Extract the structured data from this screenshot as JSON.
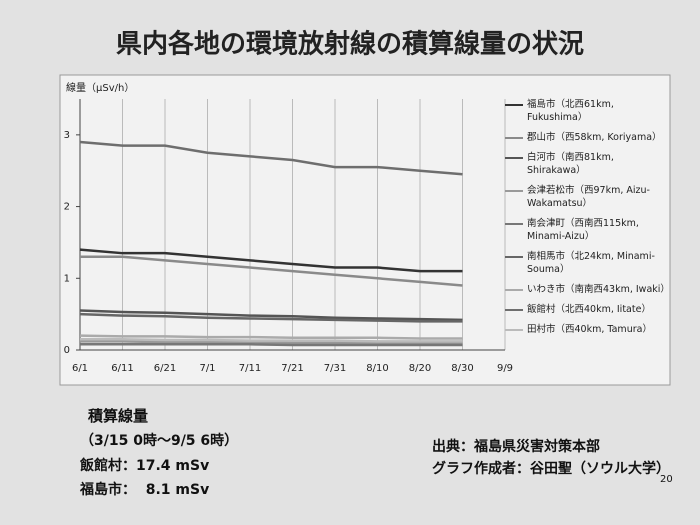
{
  "chart_data": {
    "type": "line",
    "title": "県内各地の環境放射線の積算線量の状況",
    "y_label": "線量（μSv/h）",
    "categories": [
      "6/1",
      "6/11",
      "6/21",
      "7/1",
      "7/11",
      "7/21",
      "7/31",
      "8/10",
      "8/20",
      "8/30",
      "9/9"
    ],
    "ylim": [
      0,
      3.5
    ],
    "yticks": [
      0,
      1,
      2,
      3
    ],
    "grid": true,
    "legend": "right",
    "series": [
      {
        "name": "福島市（北西61km, Fukushima）",
        "color": "#333333",
        "values": [
          1.4,
          1.35,
          1.35,
          1.3,
          1.25,
          1.2,
          1.15,
          1.15,
          1.1,
          1.1,
          null
        ]
      },
      {
        "name": "郡山市（西58km, Koriyama）",
        "color": "#8a8a8a",
        "values": [
          1.3,
          1.3,
          1.25,
          1.2,
          1.15,
          1.1,
          1.05,
          1.0,
          0.95,
          0.9,
          null
        ]
      },
      {
        "name": "白河市（南西81km, Shirakawa）",
        "color": "#555555",
        "values": [
          0.55,
          0.53,
          0.52,
          0.5,
          0.48,
          0.47,
          0.45,
          0.44,
          0.43,
          0.42,
          null
        ]
      },
      {
        "name": "会津若松市（西97km, Aizu-Wakamatsu）",
        "color": "#999999",
        "values": [
          0.12,
          0.12,
          0.11,
          0.11,
          0.11,
          0.1,
          0.1,
          0.1,
          0.1,
          0.1,
          null
        ]
      },
      {
        "name": "南会津町（西南西115km, Minami-Aizu）",
        "color": "#777777",
        "values": [
          0.08,
          0.08,
          0.08,
          0.08,
          0.08,
          0.07,
          0.07,
          0.07,
          0.07,
          0.07,
          null
        ]
      },
      {
        "name": "南相馬市（北24km, Minami-Souma）",
        "color": "#666666",
        "values": [
          0.5,
          0.48,
          0.47,
          0.45,
          0.44,
          0.43,
          0.42,
          0.41,
          0.4,
          0.4,
          null
        ]
      },
      {
        "name": "いわき市（南南西43km, Iwaki）",
        "color": "#aaaaaa",
        "values": [
          0.2,
          0.19,
          0.19,
          0.18,
          0.18,
          0.17,
          0.17,
          0.17,
          0.16,
          0.16,
          null
        ]
      },
      {
        "name": "飯館村（北西40km, Iitate）",
        "color": "#6e6e6e",
        "values": [
          2.9,
          2.85,
          2.85,
          2.75,
          2.7,
          2.65,
          2.55,
          2.55,
          2.5,
          2.45,
          null
        ]
      },
      {
        "name": "田村市（西40km, Tamura）",
        "color": "#bbbbbb",
        "values": [
          0.15,
          0.15,
          0.14,
          0.14,
          0.13,
          0.13,
          0.13,
          0.12,
          0.12,
          0.12,
          null
        ]
      }
    ]
  },
  "notes": {
    "heading": "積算線量",
    "period": "（3/15 0時～9/5 6時）",
    "iitate": "飯館村：17.4 mSv",
    "fukushima": "福島市：  8.1 mSv",
    "source": "出典：福島県災害対策本部",
    "author": "グラフ作成者：谷田聖（ソウル大学）",
    "page": "20"
  }
}
